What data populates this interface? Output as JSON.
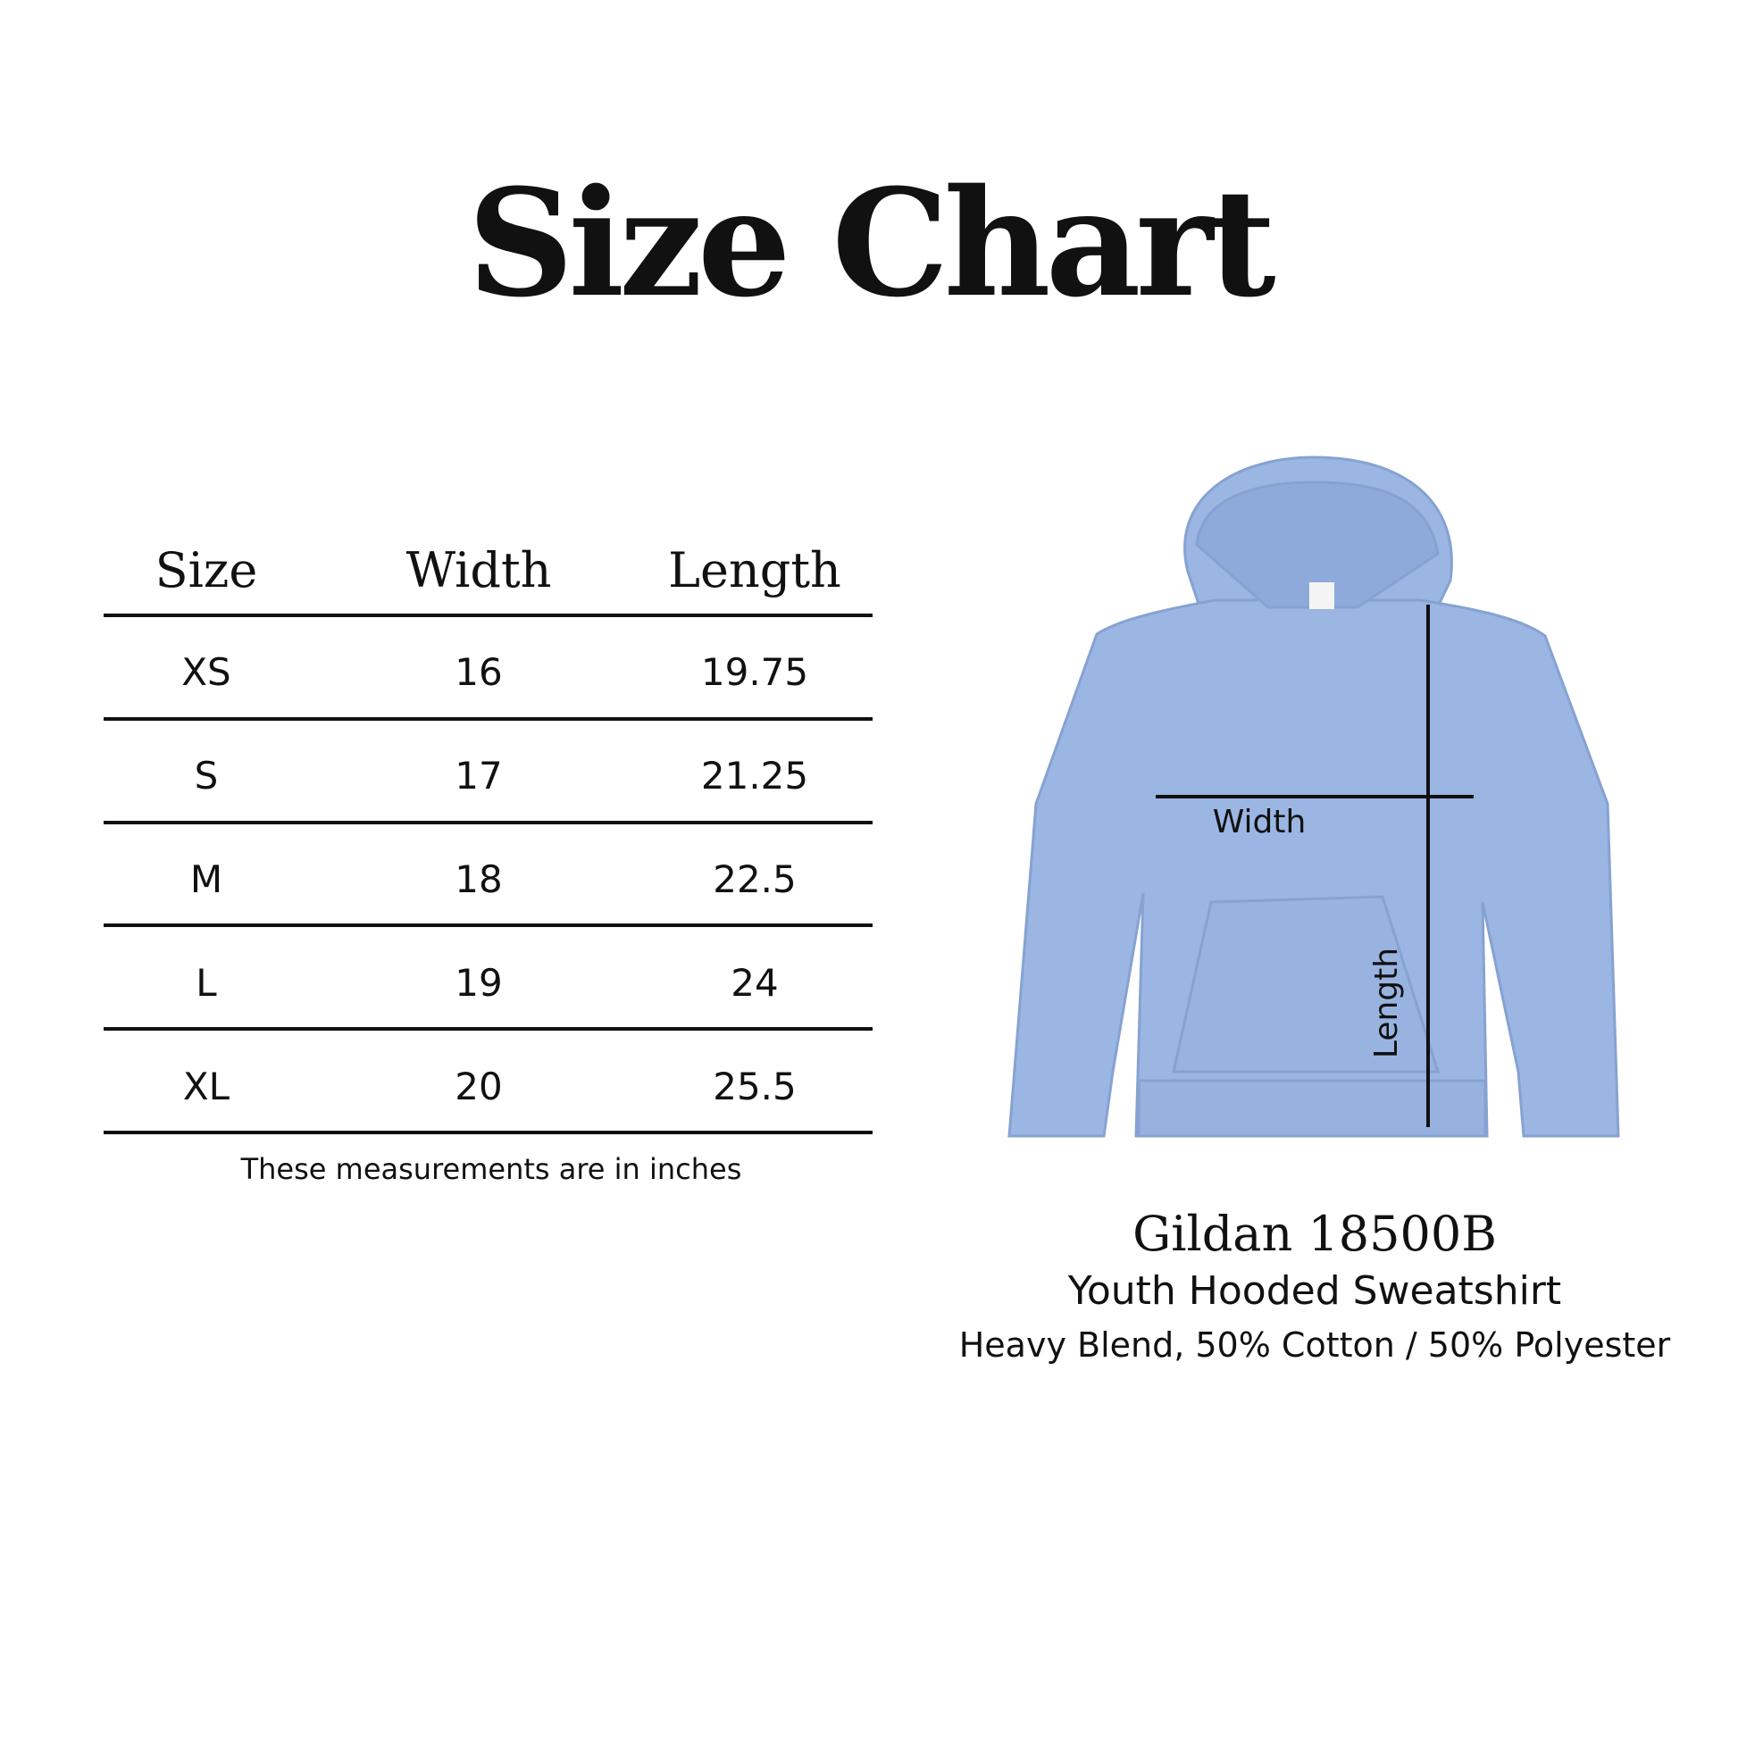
{
  "title": "Size Chart",
  "table": {
    "headers": [
      "Size",
      "Width",
      "Length"
    ],
    "rows": [
      [
        "XS",
        "16",
        "19.75"
      ],
      [
        "S",
        "17",
        "21.25"
      ],
      [
        "M",
        "18",
        "22.5"
      ],
      [
        "L",
        "19",
        "24"
      ],
      [
        "XL",
        "20",
        "25.5"
      ]
    ],
    "note": "These measurements are in inches"
  },
  "diagram": {
    "width_label": "Width",
    "length_label": "Length",
    "garment_color": "#9bb6e3"
  },
  "product": {
    "name": "Gildan 18500B",
    "type": "Youth Hooded Sweatshirt",
    "material": "Heavy Blend, 50% Cotton / 50% Polyester"
  }
}
